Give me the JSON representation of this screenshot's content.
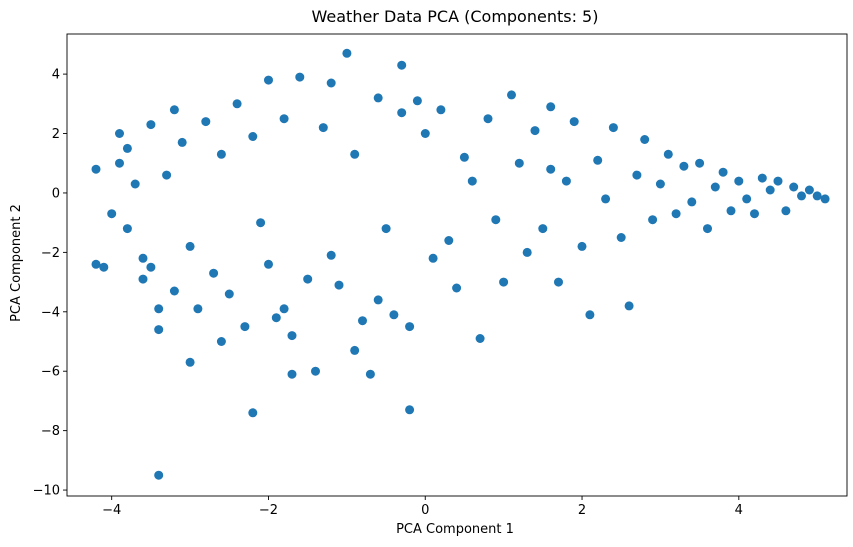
{
  "chart_data": {
    "type": "scatter",
    "title": "Weather Data PCA (Components: 5)",
    "xlabel": "PCA Component 1",
    "ylabel": "PCA Component 2",
    "xlim": [
      -4.57,
      5.38
    ],
    "ylim": [
      -10.2,
      5.35
    ],
    "xticks": [
      -4,
      -2,
      0,
      2,
      4
    ],
    "xtick_labels": [
      "−4",
      "−2",
      "0",
      "2",
      "4"
    ],
    "yticks": [
      -10,
      -8,
      -6,
      -4,
      -2,
      0,
      2,
      4
    ],
    "ytick_labels": [
      "−10",
      "−8",
      "−6",
      "−4",
      "−2",
      "0",
      "2",
      "4"
    ],
    "grid": false,
    "legend": "none",
    "marker_color": "#1f77b4",
    "series": [
      {
        "points": [
          [
            -4.2,
            0.8
          ],
          [
            -4.2,
            -2.4
          ],
          [
            -4.1,
            -2.5
          ],
          [
            -4.0,
            -0.7
          ],
          [
            -3.9,
            1.0
          ],
          [
            -3.9,
            2.0
          ],
          [
            -3.8,
            1.5
          ],
          [
            -3.8,
            -1.2
          ],
          [
            -3.7,
            0.3
          ],
          [
            -3.6,
            -2.2
          ],
          [
            -3.6,
            -2.9
          ],
          [
            -3.5,
            -2.5
          ],
          [
            -3.5,
            2.3
          ],
          [
            -3.4,
            -3.9
          ],
          [
            -3.4,
            -4.6
          ],
          [
            -3.4,
            -9.5
          ],
          [
            -3.3,
            0.6
          ],
          [
            -3.2,
            -3.3
          ],
          [
            -3.2,
            2.8
          ],
          [
            -3.1,
            1.7
          ],
          [
            -3.0,
            -5.7
          ],
          [
            -3.0,
            -1.8
          ],
          [
            -2.9,
            -3.9
          ],
          [
            -2.8,
            2.4
          ],
          [
            -2.7,
            -2.7
          ],
          [
            -2.6,
            -5.0
          ],
          [
            -2.6,
            1.3
          ],
          [
            -2.5,
            -3.4
          ],
          [
            -2.4,
            3.0
          ],
          [
            -2.3,
            -4.5
          ],
          [
            -2.2,
            -7.4
          ],
          [
            -2.2,
            1.9
          ],
          [
            -2.1,
            -1.0
          ],
          [
            -2.0,
            3.8
          ],
          [
            -2.0,
            -2.4
          ],
          [
            -1.9,
            -4.2
          ],
          [
            -1.8,
            2.5
          ],
          [
            -1.8,
            -3.9
          ],
          [
            -1.7,
            -6.1
          ],
          [
            -1.7,
            -4.8
          ],
          [
            -1.6,
            3.9
          ],
          [
            -1.5,
            -2.9
          ],
          [
            -1.4,
            -6.0
          ],
          [
            -1.3,
            2.2
          ],
          [
            -1.2,
            3.7
          ],
          [
            -1.2,
            -2.1
          ],
          [
            -1.1,
            -3.1
          ],
          [
            -1.0,
            4.7
          ],
          [
            -0.9,
            -5.3
          ],
          [
            -0.9,
            1.3
          ],
          [
            -0.8,
            -4.3
          ],
          [
            -0.7,
            -6.1
          ],
          [
            -0.6,
            3.2
          ],
          [
            -0.6,
            -3.6
          ],
          [
            -0.5,
            -1.2
          ],
          [
            -0.4,
            -4.1
          ],
          [
            -0.3,
            4.3
          ],
          [
            -0.3,
            2.7
          ],
          [
            -0.2,
            -4.5
          ],
          [
            -0.2,
            -7.3
          ],
          [
            -0.1,
            3.1
          ],
          [
            0.0,
            2.0
          ],
          [
            0.1,
            -2.2
          ],
          [
            0.2,
            2.8
          ],
          [
            0.3,
            -1.6
          ],
          [
            0.4,
            -3.2
          ],
          [
            0.5,
            1.2
          ],
          [
            0.6,
            0.4
          ],
          [
            0.7,
            -4.9
          ],
          [
            0.8,
            2.5
          ],
          [
            0.9,
            -0.9
          ],
          [
            1.0,
            -3.0
          ],
          [
            1.1,
            3.3
          ],
          [
            1.2,
            1.0
          ],
          [
            1.3,
            -2.0
          ],
          [
            1.4,
            2.1
          ],
          [
            1.5,
            -1.2
          ],
          [
            1.6,
            0.8
          ],
          [
            1.6,
            2.9
          ],
          [
            1.7,
            -3.0
          ],
          [
            1.8,
            0.4
          ],
          [
            1.9,
            2.4
          ],
          [
            2.0,
            -1.8
          ],
          [
            2.1,
            -4.1
          ],
          [
            2.2,
            1.1
          ],
          [
            2.3,
            -0.2
          ],
          [
            2.4,
            2.2
          ],
          [
            2.5,
            -1.5
          ],
          [
            2.6,
            -3.8
          ],
          [
            2.7,
            0.6
          ],
          [
            2.8,
            1.8
          ],
          [
            2.9,
            -0.9
          ],
          [
            3.0,
            0.3
          ],
          [
            3.1,
            1.3
          ],
          [
            3.2,
            -0.7
          ],
          [
            3.3,
            0.9
          ],
          [
            3.4,
            -0.3
          ],
          [
            3.5,
            1.0
          ],
          [
            3.6,
            -1.2
          ],
          [
            3.7,
            0.2
          ],
          [
            3.8,
            0.7
          ],
          [
            3.9,
            -0.6
          ],
          [
            4.0,
            0.4
          ],
          [
            4.1,
            -0.2
          ],
          [
            4.2,
            -0.7
          ],
          [
            4.3,
            0.5
          ],
          [
            4.4,
            0.1
          ],
          [
            4.5,
            0.4
          ],
          [
            4.6,
            -0.6
          ],
          [
            4.7,
            0.2
          ],
          [
            4.8,
            -0.1
          ],
          [
            4.9,
            0.1
          ],
          [
            5.0,
            -0.1
          ],
          [
            5.1,
            -0.2
          ]
        ]
      }
    ]
  }
}
